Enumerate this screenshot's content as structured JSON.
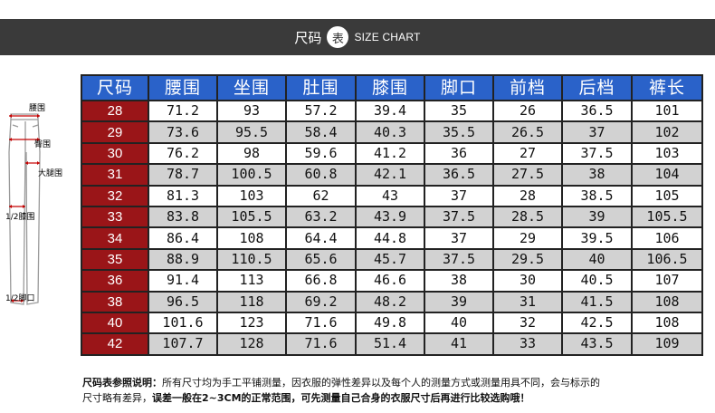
{
  "header": {
    "title": "尺码",
    "circle_char": "表",
    "subtitle": "SIZE CHART"
  },
  "diagram": {
    "labels": [
      "腰围",
      "臀围",
      "大腿围",
      "1/2膝围",
      "1/2脚口"
    ]
  },
  "table": {
    "columns": [
      "尺码",
      "腰围",
      "坐围",
      "肚围",
      "膝围",
      "脚口",
      "前档",
      "后档",
      "裤长"
    ],
    "rows": [
      [
        "28",
        "71.2",
        "93",
        "57.2",
        "39.4",
        "35",
        "26",
        "36.5",
        "101"
      ],
      [
        "29",
        "73.6",
        "95.5",
        "58.4",
        "40.3",
        "35.5",
        "26.5",
        "37",
        "102"
      ],
      [
        "30",
        "76.2",
        "98",
        "59.6",
        "41.2",
        "36",
        "27",
        "37.5",
        "103"
      ],
      [
        "31",
        "78.7",
        "100.5",
        "60.8",
        "42.1",
        "36.5",
        "27.5",
        "38",
        "104"
      ],
      [
        "32",
        "81.3",
        "103",
        "62",
        "43",
        "37",
        "28",
        "38.5",
        "105"
      ],
      [
        "33",
        "83.8",
        "105.5",
        "63.2",
        "43.9",
        "37.5",
        "28.5",
        "39",
        "105.5"
      ],
      [
        "34",
        "86.4",
        "108",
        "64.4",
        "44.8",
        "37",
        "29",
        "39.5",
        "106"
      ],
      [
        "35",
        "88.9",
        "110.5",
        "65.6",
        "45.7",
        "37.5",
        "29.5",
        "40",
        "106.5"
      ],
      [
        "36",
        "91.4",
        "113",
        "66.8",
        "46.6",
        "38",
        "30",
        "40.5",
        "107"
      ],
      [
        "38",
        "96.5",
        "118",
        "69.2",
        "48.2",
        "39",
        "31",
        "41.5",
        "108"
      ],
      [
        "40",
        "101.6",
        "123",
        "71.6",
        "49.8",
        "40",
        "32",
        "42.5",
        "108"
      ],
      [
        "42",
        "107.7",
        "128",
        "71.6",
        "51.4",
        "41",
        "33",
        "43.5",
        "109"
      ]
    ]
  },
  "note": {
    "label": "尺码表参照说明：",
    "line1": "所有尺寸均为手工平铺测量，因衣服的弹性差异以及每个人的测量方式或测量用具不同，会与标示的",
    "line2a": "尺寸略有差异，",
    "line2b": "误差一般在2~3CM的正常范围",
    "line2c": "，可先测量自己合身的衣服尺寸后再进行比较选购哦！"
  },
  "colors": {
    "header_band": "#3a3a3a",
    "column_header": "#2a62c9",
    "size_cell": "#9a1518",
    "row_alt": "#d2d2d2"
  }
}
